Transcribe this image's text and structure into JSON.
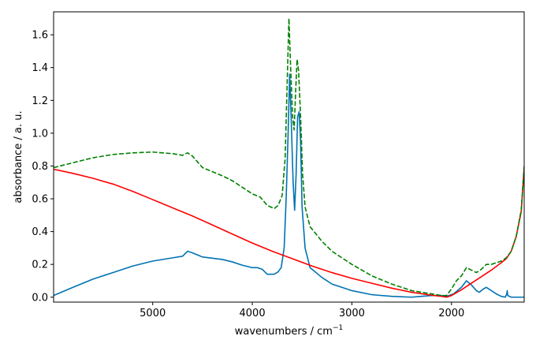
{
  "chart_data": {
    "type": "line",
    "xlabel": "wavenumbers / cm",
    "xlabel_sup": "−1",
    "ylabel": "absorbance / a. u.",
    "xlim": [
      5995,
      1270
    ],
    "x_reversed": true,
    "ylim": [
      -0.03,
      1.74
    ],
    "x_ticks": [
      5000,
      4000,
      3000,
      2000
    ],
    "x_tick_labels": [
      "5000",
      "4000",
      "3000",
      "2000"
    ],
    "y_ticks": [
      0.0,
      0.2,
      0.4,
      0.6,
      0.8,
      1.0,
      1.2,
      1.4,
      1.6
    ],
    "y_tick_labels": [
      "0.0",
      "0.2",
      "0.4",
      "0.6",
      "0.8",
      "1.0",
      "1.2",
      "1.4",
      "1.6"
    ],
    "grid": false,
    "legend": "none",
    "series": [
      {
        "color": "#0072b2",
        "style": "solid",
        "points": [
          [
            5995,
            0.01
          ],
          [
            5800,
            0.06
          ],
          [
            5600,
            0.11
          ],
          [
            5400,
            0.15
          ],
          [
            5200,
            0.19
          ],
          [
            5000,
            0.22
          ],
          [
            4800,
            0.24
          ],
          [
            4700,
            0.25
          ],
          [
            4650,
            0.28
          ],
          [
            4600,
            0.27
          ],
          [
            4500,
            0.245
          ],
          [
            4300,
            0.23
          ],
          [
            4200,
            0.215
          ],
          [
            4100,
            0.195
          ],
          [
            4000,
            0.18
          ],
          [
            3950,
            0.18
          ],
          [
            3900,
            0.17
          ],
          [
            3850,
            0.14
          ],
          [
            3780,
            0.14
          ],
          [
            3740,
            0.155
          ],
          [
            3710,
            0.18
          ],
          [
            3680,
            0.3
          ],
          [
            3660,
            0.6
          ],
          [
            3640,
            1.0
          ],
          [
            3625,
            1.36
          ],
          [
            3610,
            1.1
          ],
          [
            3590,
            0.7
          ],
          [
            3575,
            0.53
          ],
          [
            3560,
            0.75
          ],
          [
            3545,
            1.1
          ],
          [
            3530,
            1.13
          ],
          [
            3515,
            0.95
          ],
          [
            3500,
            0.55
          ],
          [
            3470,
            0.3
          ],
          [
            3420,
            0.18
          ],
          [
            3300,
            0.12
          ],
          [
            3200,
            0.08
          ],
          [
            3000,
            0.04
          ],
          [
            2800,
            0.015
          ],
          [
            2600,
            0.005
          ],
          [
            2400,
            0.0
          ],
          [
            2300,
            0.005
          ],
          [
            2200,
            0.01
          ],
          [
            2100,
            0.01
          ],
          [
            2050,
            0.005
          ],
          [
            1980,
            0.02
          ],
          [
            1900,
            0.06
          ],
          [
            1850,
            0.1
          ],
          [
            1800,
            0.075
          ],
          [
            1750,
            0.04
          ],
          [
            1720,
            0.03
          ],
          [
            1680,
            0.05
          ],
          [
            1650,
            0.06
          ],
          [
            1600,
            0.04
          ],
          [
            1550,
            0.02
          ],
          [
            1500,
            0.005
          ],
          [
            1460,
            0.0
          ],
          [
            1445,
            0.02
          ],
          [
            1440,
            0.04
          ],
          [
            1435,
            0.01
          ],
          [
            1400,
            0.0
          ],
          [
            1270,
            0.0
          ]
        ]
      },
      {
        "color": "#ff0000",
        "style": "solid",
        "points": [
          [
            5995,
            0.78
          ],
          [
            5800,
            0.755
          ],
          [
            5600,
            0.725
          ],
          [
            5400,
            0.69
          ],
          [
            5200,
            0.645
          ],
          [
            5000,
            0.595
          ],
          [
            4800,
            0.545
          ],
          [
            4600,
            0.495
          ],
          [
            4400,
            0.44
          ],
          [
            4200,
            0.385
          ],
          [
            4000,
            0.33
          ],
          [
            3800,
            0.28
          ],
          [
            3600,
            0.235
          ],
          [
            3400,
            0.19
          ],
          [
            3200,
            0.15
          ],
          [
            3000,
            0.115
          ],
          [
            2800,
            0.085
          ],
          [
            2600,
            0.055
          ],
          [
            2400,
            0.03
          ],
          [
            2200,
            0.012
          ],
          [
            2100,
            0.005
          ],
          [
            2050,
            0.0
          ],
          [
            2000,
            0.01
          ],
          [
            1900,
            0.045
          ],
          [
            1800,
            0.085
          ],
          [
            1700,
            0.125
          ],
          [
            1600,
            0.165
          ],
          [
            1500,
            0.21
          ],
          [
            1450,
            0.235
          ],
          [
            1400,
            0.28
          ],
          [
            1350,
            0.37
          ],
          [
            1300,
            0.52
          ],
          [
            1270,
            0.79
          ]
        ]
      },
      {
        "color": "#008000",
        "style": "dashed",
        "points": [
          [
            5995,
            0.79
          ],
          [
            5800,
            0.82
          ],
          [
            5600,
            0.85
          ],
          [
            5400,
            0.87
          ],
          [
            5200,
            0.88
          ],
          [
            5000,
            0.885
          ],
          [
            4800,
            0.875
          ],
          [
            4700,
            0.865
          ],
          [
            4650,
            0.88
          ],
          [
            4600,
            0.86
          ],
          [
            4500,
            0.79
          ],
          [
            4300,
            0.74
          ],
          [
            4200,
            0.71
          ],
          [
            4100,
            0.67
          ],
          [
            4000,
            0.63
          ],
          [
            3920,
            0.61
          ],
          [
            3850,
            0.56
          ],
          [
            3780,
            0.54
          ],
          [
            3740,
            0.56
          ],
          [
            3700,
            0.62
          ],
          [
            3670,
            0.85
          ],
          [
            3650,
            1.3
          ],
          [
            3632,
            1.7
          ],
          [
            3615,
            1.4
          ],
          [
            3595,
            1.1
          ],
          [
            3580,
            1.02
          ],
          [
            3565,
            1.25
          ],
          [
            3550,
            1.45
          ],
          [
            3535,
            1.38
          ],
          [
            3515,
            1.1
          ],
          [
            3495,
            0.75
          ],
          [
            3470,
            0.55
          ],
          [
            3420,
            0.43
          ],
          [
            3300,
            0.34
          ],
          [
            3200,
            0.28
          ],
          [
            3000,
            0.2
          ],
          [
            2800,
            0.13
          ],
          [
            2600,
            0.08
          ],
          [
            2400,
            0.04
          ],
          [
            2300,
            0.03
          ],
          [
            2200,
            0.02
          ],
          [
            2100,
            0.01
          ],
          [
            2050,
            0.01
          ],
          [
            2000,
            0.05
          ],
          [
            1950,
            0.1
          ],
          [
            1900,
            0.13
          ],
          [
            1850,
            0.18
          ],
          [
            1800,
            0.165
          ],
          [
            1750,
            0.15
          ],
          [
            1700,
            0.17
          ],
          [
            1650,
            0.2
          ],
          [
            1600,
            0.2
          ],
          [
            1500,
            0.22
          ],
          [
            1450,
            0.24
          ],
          [
            1400,
            0.28
          ],
          [
            1350,
            0.37
          ],
          [
            1300,
            0.53
          ],
          [
            1270,
            0.8
          ]
        ]
      }
    ]
  }
}
